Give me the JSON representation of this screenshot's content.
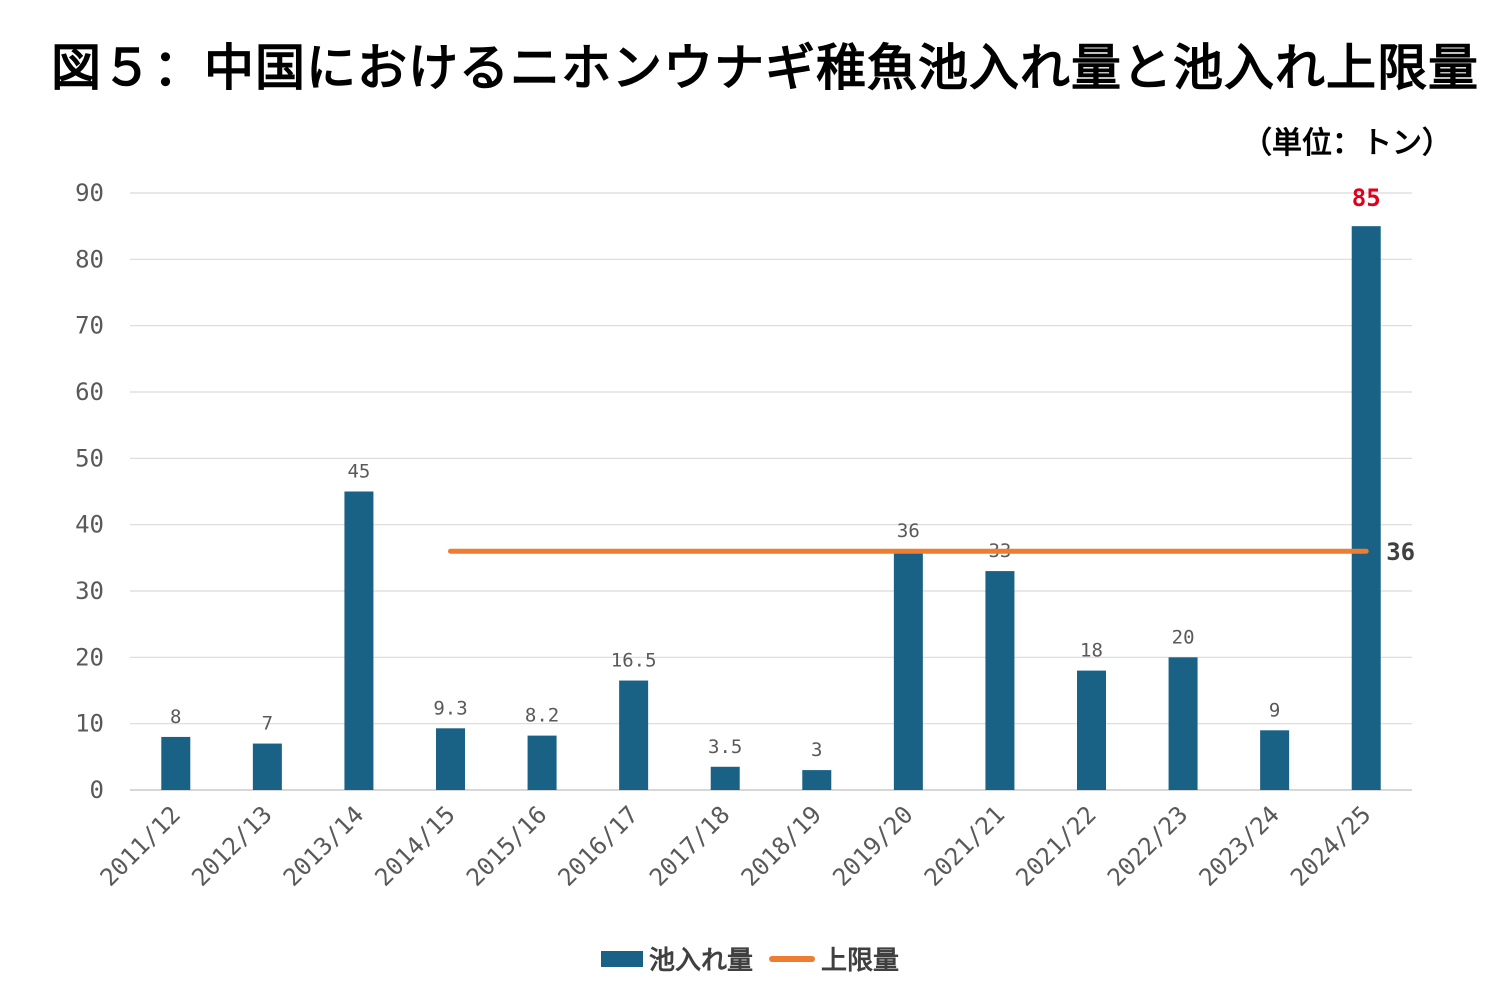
{
  "chart_data": {
    "type": "bar",
    "title": "図５：中国におけるニホンウナギ稚魚池入れ量と池入れ上限量",
    "unit_note": "（単位：トン）",
    "categories": [
      "2011/12",
      "2012/13",
      "2013/14",
      "2014/15",
      "2015/16",
      "2016/17",
      "2017/18",
      "2018/19",
      "2019/20",
      "2021/21",
      "2021/22",
      "2022/23",
      "2023/24",
      "2024/25"
    ],
    "series": [
      {
        "name": "池入れ量",
        "type": "bar",
        "color": "#1a6186",
        "values": [
          8,
          7,
          45,
          9.3,
          8.2,
          16.5,
          3.5,
          3,
          36,
          33,
          18,
          20,
          9,
          85
        ],
        "data_labels": [
          "8",
          "7",
          "45",
          "9.3",
          "8.2",
          "16.5",
          "3.5",
          "3",
          "36",
          "33",
          "18",
          "20",
          "9",
          "85"
        ],
        "highlight_label_index": 13,
        "highlight_color": "#e0001b"
      },
      {
        "name": "上限量",
        "type": "line",
        "color": "#ee7d31",
        "value": 36,
        "start_category": "2014/15",
        "end_category": "2024/25",
        "end_label": "36"
      }
    ],
    "yticks": [
      "0",
      "10",
      "20",
      "30",
      "40",
      "50",
      "60",
      "70",
      "80",
      "90"
    ],
    "ylim": [
      0,
      90
    ],
    "grid": true,
    "legend": "bottom"
  }
}
